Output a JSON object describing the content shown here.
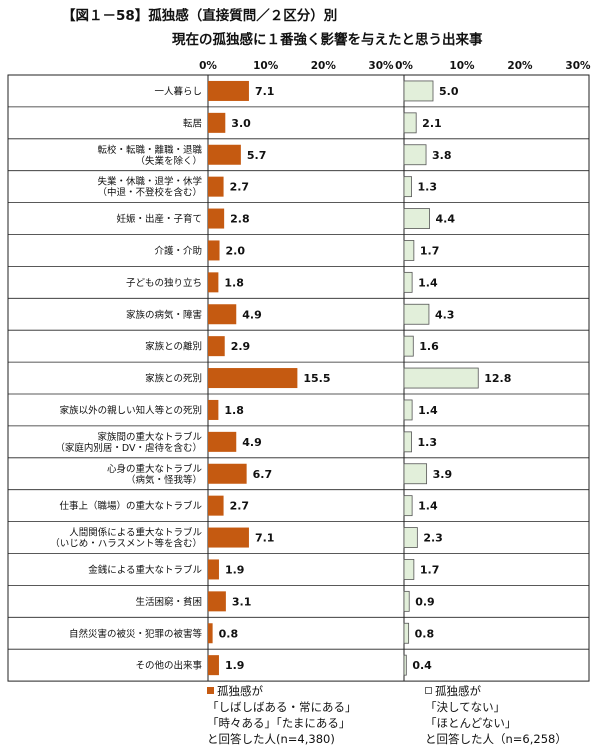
{
  "title_line1": "【図１－58】孤独感（直接質問／２区分）別",
  "title_line2": "現在の孤独感に１番強く影響を与えたと思う出来事",
  "chart_data": {
    "type": "bar",
    "orientation": "horizontal",
    "xlim": [
      0,
      30
    ],
    "ticks": [
      "0%",
      "10%",
      "20%",
      "30%"
    ],
    "categories": [
      [
        "一人暮らし"
      ],
      [
        "転居"
      ],
      [
        "転校・転職・離職・退職",
        "（失業を除く）"
      ],
      [
        "失業・休職・退学・休学",
        "（中退・不登校を含む）"
      ],
      [
        "妊娠・出産・子育て"
      ],
      [
        "介護・介助"
      ],
      [
        "子どもの独り立ち"
      ],
      [
        "家族の病気・障害"
      ],
      [
        "家族との離別"
      ],
      [
        "家族との死別"
      ],
      [
        "家族以外の親しい知人等との死別"
      ],
      [
        "家族間の重大なトラブル",
        "（家庭内別居・DV・虐待を含む）"
      ],
      [
        "心身の重大なトラブル",
        "（病気・怪我等）"
      ],
      [
        "仕事上（職場）の重大なトラブル"
      ],
      [
        "人間関係による重大なトラブル",
        "（いじめ・ハラスメント等を含む）"
      ],
      [
        "金銭による重大なトラブル"
      ],
      [
        "生活困窮・貧困"
      ],
      [
        "自然災害の被災・犯罪の被害等"
      ],
      [
        "その他の出来事"
      ]
    ],
    "series": [
      {
        "color": "#c55a11",
        "values": [
          7.1,
          3.0,
          5.7,
          2.7,
          2.8,
          2.0,
          1.8,
          4.9,
          2.9,
          15.5,
          1.8,
          4.9,
          6.7,
          2.7,
          7.1,
          1.9,
          3.1,
          0.8,
          1.9
        ],
        "labels": [
          "7.1",
          "3.0",
          "5.7",
          "2.7",
          "2.8",
          "2.0",
          "1.8",
          "4.9",
          "2.9",
          "15.5",
          "1.8",
          "4.9",
          "6.7",
          "2.7",
          "7.1",
          "1.9",
          "3.1",
          "0.8",
          "1.9"
        ]
      },
      {
        "color": "#e2efda",
        "values": [
          5.0,
          2.1,
          3.8,
          1.3,
          4.4,
          1.7,
          1.4,
          4.3,
          1.6,
          12.8,
          1.4,
          1.3,
          3.9,
          1.4,
          2.3,
          1.7,
          0.9,
          0.8,
          0.4
        ],
        "labels": [
          "5.0",
          "2.1",
          "3.8",
          "1.3",
          "4.4",
          "1.7",
          "1.4",
          "4.3",
          "1.6",
          "12.8",
          "1.4",
          "1.3",
          "3.9",
          "1.4",
          "2.3",
          "1.7",
          "0.9",
          "0.8",
          "0.4"
        ]
      }
    ]
  },
  "legend": {
    "left": [
      "孤独感が",
      "「しばしばある・常にある」",
      "「時々ある」「たまにある」",
      "と回答した人(n=4,380)"
    ],
    "right": [
      "孤独感が",
      "「決してない」",
      "「ほとんどない」",
      "と回答した人（n=6,258）"
    ]
  }
}
